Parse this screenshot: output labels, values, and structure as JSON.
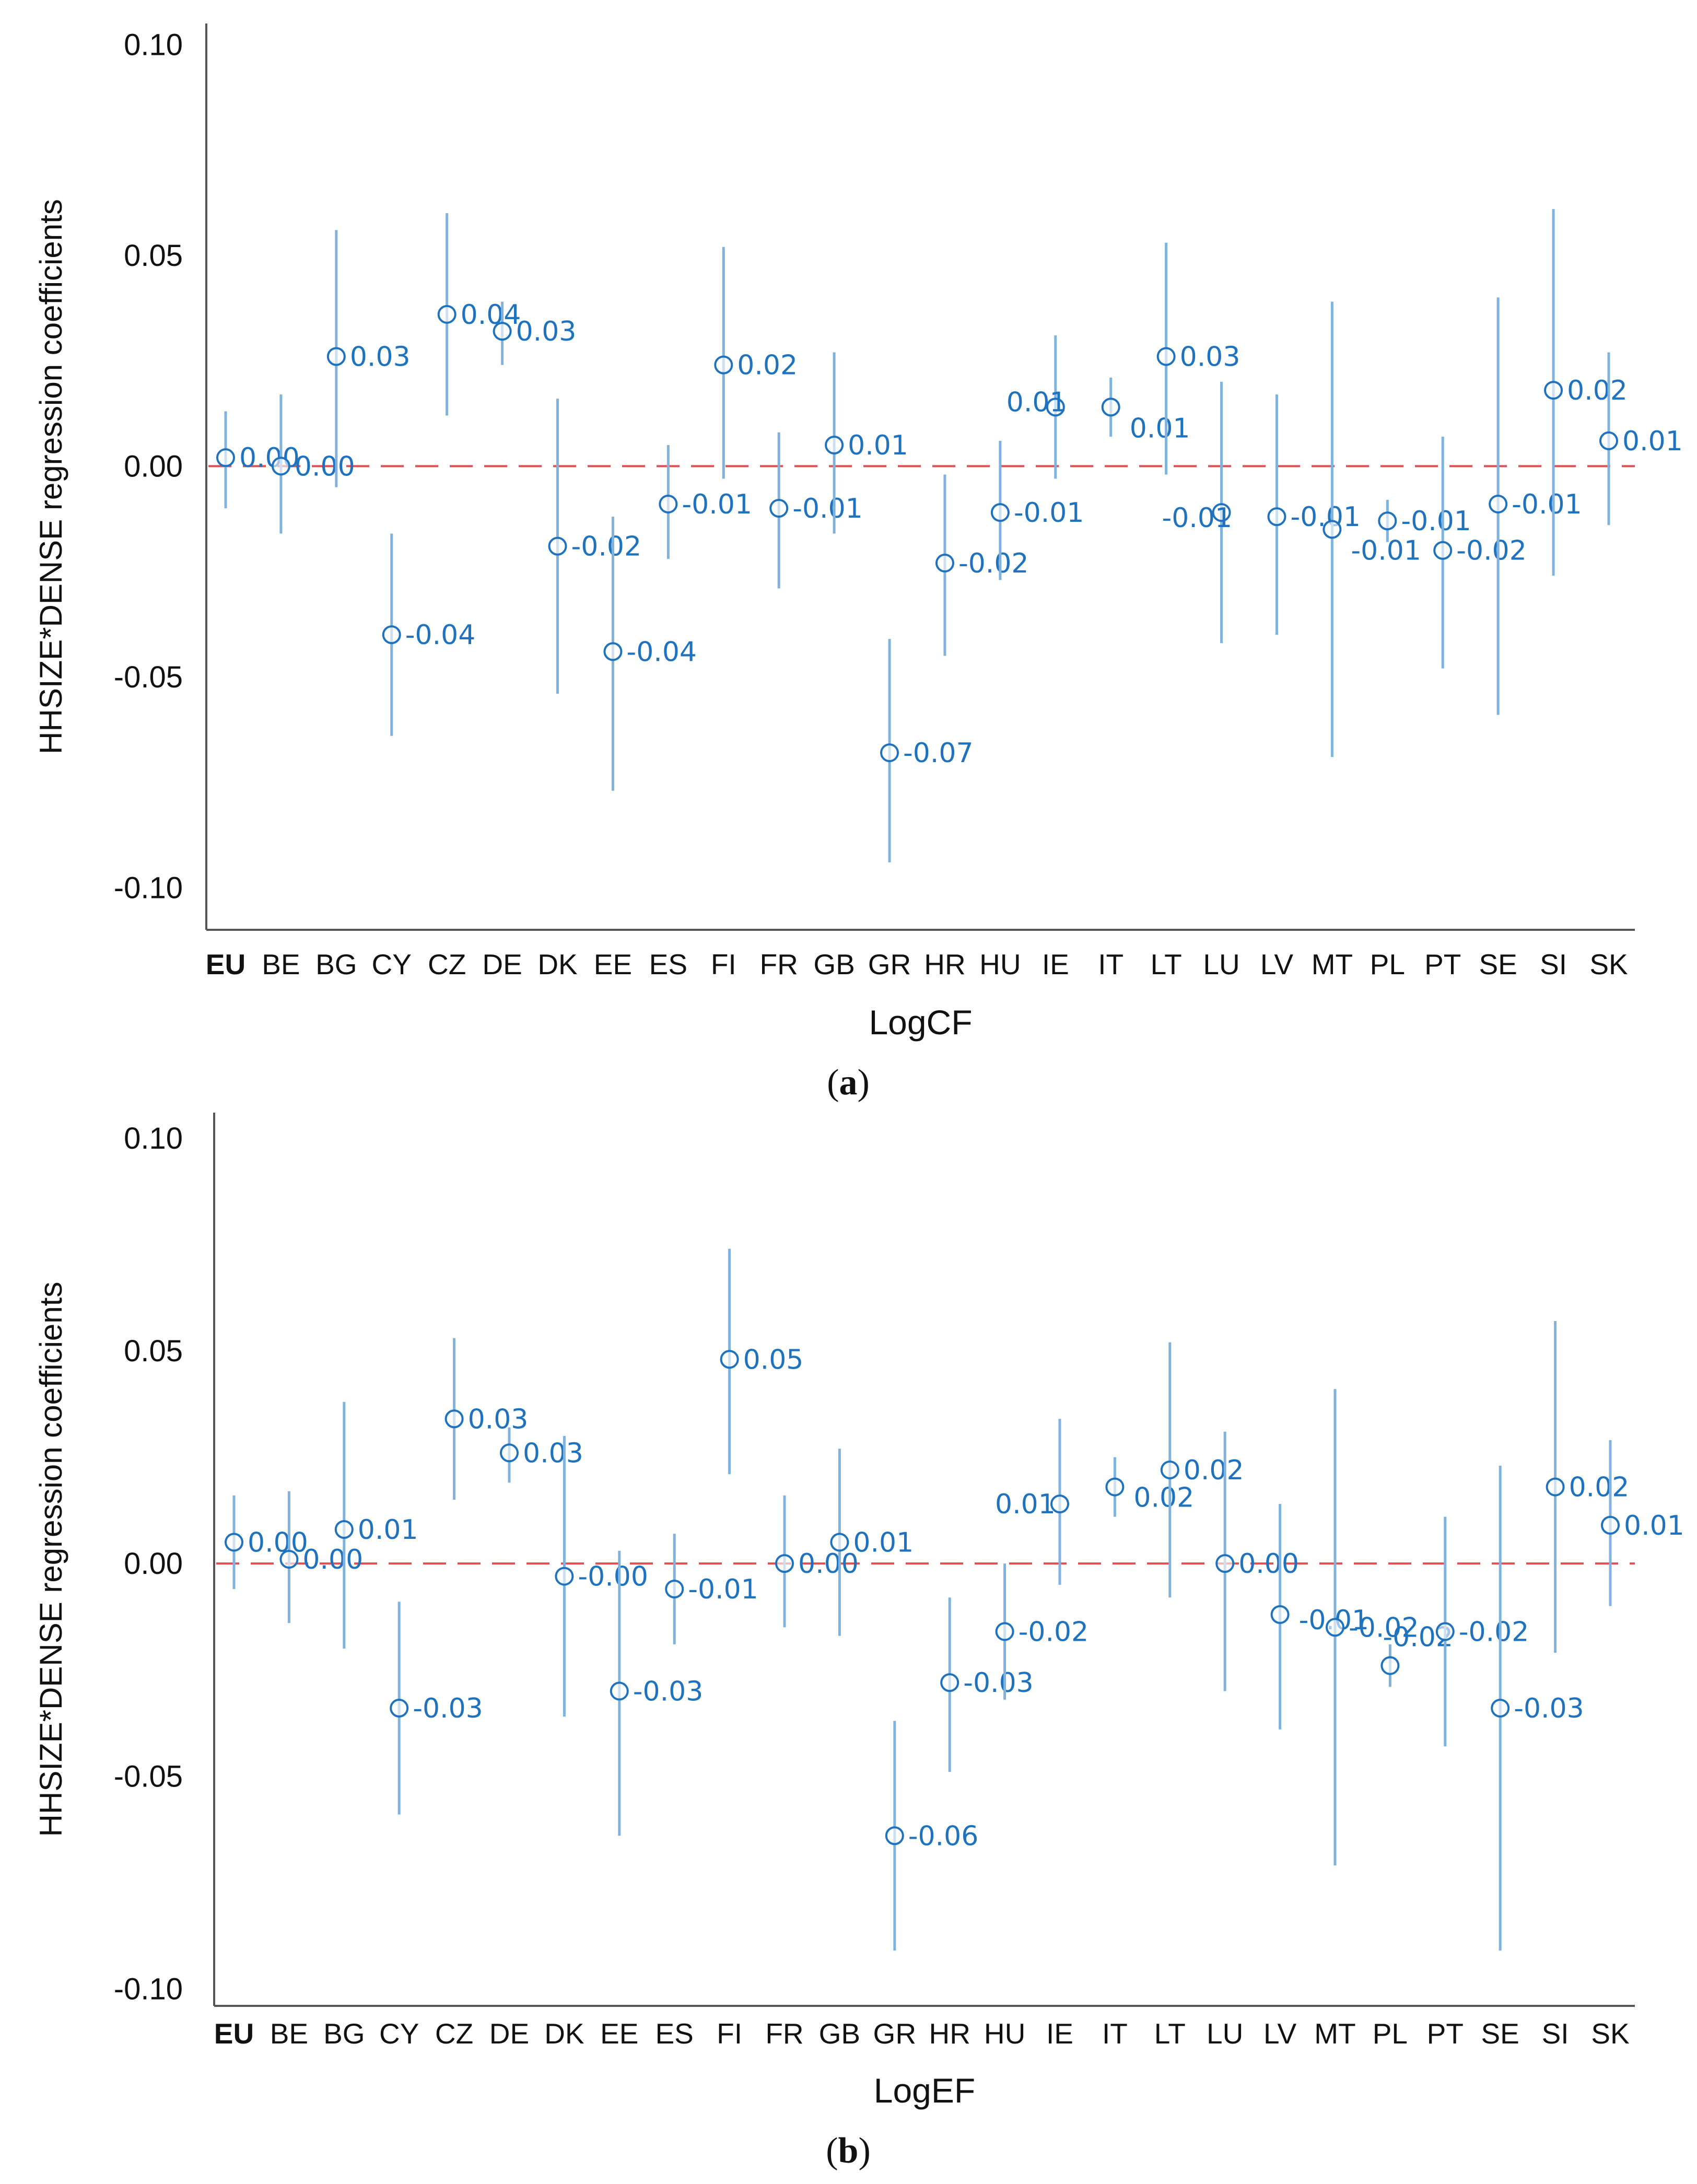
{
  "chart_data": [
    {
      "type": "scatter",
      "panel_label": "a",
      "title": "",
      "xlabel": "LogCF",
      "ylabel": "HHSIZE*DENSE regression coefficients",
      "ylim": [
        -0.11,
        0.105
      ],
      "yticks": [
        "0.10",
        "0.05",
        "0.00",
        "-0.05",
        "-0.10"
      ],
      "ytick_values": [
        0.1,
        0.05,
        0.0,
        -0.05,
        -0.1
      ],
      "reference_line": 0.0,
      "categories": [
        "EU",
        "BE",
        "BG",
        "CY",
        "CZ",
        "DE",
        "DK",
        "EE",
        "ES",
        "FI",
        "FR",
        "GB",
        "GR",
        "HR",
        "HU",
        "IE",
        "IT",
        "LT",
        "LU",
        "LV",
        "MT",
        "PL",
        "PT",
        "SE",
        "SI",
        "SK"
      ],
      "values": [
        0.002,
        0.0,
        0.026,
        -0.04,
        0.036,
        0.032,
        -0.019,
        -0.044,
        -0.009,
        0.024,
        -0.01,
        0.005,
        -0.068,
        -0.023,
        -0.011,
        0.014,
        0.014,
        0.026,
        -0.011,
        -0.012,
        -0.015,
        -0.013,
        -0.02,
        -0.009,
        0.018,
        0.006
      ],
      "lower": [
        -0.01,
        -0.016,
        -0.005,
        -0.064,
        0.012,
        0.024,
        -0.054,
        -0.077,
        -0.022,
        -0.003,
        -0.029,
        -0.016,
        -0.094,
        -0.045,
        -0.027,
        -0.003,
        0.007,
        -0.002,
        -0.042,
        -0.04,
        -0.069,
        -0.018,
        -0.048,
        -0.059,
        -0.026,
        -0.014
      ],
      "upper": [
        0.013,
        0.017,
        0.056,
        -0.016,
        0.06,
        0.039,
        0.016,
        -0.012,
        0.005,
        0.052,
        0.008,
        0.027,
        -0.041,
        -0.002,
        0.006,
        0.031,
        0.021,
        0.053,
        0.02,
        0.017,
        0.039,
        -0.008,
        0.007,
        0.04,
        0.061,
        0.027
      ],
      "data_labels": [
        "0.00",
        "0.00",
        "0.03",
        "-0.04",
        "0.04",
        "0.03",
        "-0.02",
        "-0.04",
        "-0.01",
        "0.02",
        "-0.01",
        "0.01",
        "-0.07",
        "-0.02",
        "-0.01",
        "0.01",
        "0.01",
        "0.03",
        "-0.01",
        "-0.01",
        "-0.01",
        "-0.01",
        "-0.02",
        "-0.01",
        "0.02",
        "0.01"
      ]
    },
    {
      "type": "scatter",
      "panel_label": "b",
      "title": "",
      "xlabel": "LogEF",
      "ylabel": "HHSIZE*DENSE regression coefficients",
      "ylim": [
        -0.104,
        0.106
      ],
      "yticks": [
        "0.10",
        "0.05",
        "0.00",
        "-0.05",
        "-0.10"
      ],
      "ytick_values": [
        0.1,
        0.05,
        0.0,
        -0.05,
        -0.1
      ],
      "reference_line": 0.0,
      "categories": [
        "EU",
        "BE",
        "BG",
        "CY",
        "CZ",
        "DE",
        "DK",
        "EE",
        "ES",
        "FI",
        "FR",
        "GB",
        "GR",
        "HR",
        "HU",
        "IE",
        "IT",
        "LT",
        "LU",
        "LV",
        "MT",
        "PL",
        "PT",
        "SE",
        "SI",
        "SK"
      ],
      "values": [
        0.005,
        0.001,
        0.008,
        -0.034,
        0.034,
        0.026,
        -0.003,
        -0.03,
        -0.006,
        0.048,
        0.0,
        0.005,
        -0.064,
        -0.028,
        -0.016,
        0.014,
        0.018,
        0.022,
        0.0,
        -0.012,
        -0.015,
        -0.024,
        -0.016,
        -0.034,
        0.018,
        0.009
      ],
      "lower": [
        -0.006,
        -0.014,
        -0.02,
        -0.059,
        0.015,
        0.019,
        -0.036,
        -0.064,
        -0.019,
        0.021,
        -0.015,
        -0.017,
        -0.091,
        -0.049,
        -0.032,
        -0.005,
        0.011,
        -0.008,
        -0.03,
        -0.039,
        -0.071,
        -0.029,
        -0.043,
        -0.091,
        -0.021,
        -0.01
      ],
      "upper": [
        0.016,
        0.017,
        0.038,
        -0.009,
        0.053,
        0.032,
        0.03,
        0.003,
        0.007,
        0.074,
        0.016,
        0.027,
        -0.037,
        -0.008,
        0.0,
        0.034,
        0.025,
        0.052,
        0.031,
        0.014,
        0.041,
        -0.019,
        0.011,
        0.023,
        0.057,
        0.029
      ],
      "data_labels": [
        "0.00",
        "0.00",
        "0.01",
        "-0.03",
        "0.03",
        "0.03",
        "-0.00",
        "-0.03",
        "-0.01",
        "0.05",
        "0.00",
        "0.01",
        "-0.06",
        "-0.03",
        "-0.02",
        "0.01",
        "0.02",
        "0.02",
        "0.00",
        "-0.01",
        "-0.02",
        "-0.02",
        "-0.02",
        "-0.03",
        "0.02",
        "0.01"
      ]
    }
  ],
  "colors": {
    "marker": "#1f72be",
    "error_bar": "#7fb2dc",
    "reference_line": "#e05050",
    "axis": "#555555"
  }
}
